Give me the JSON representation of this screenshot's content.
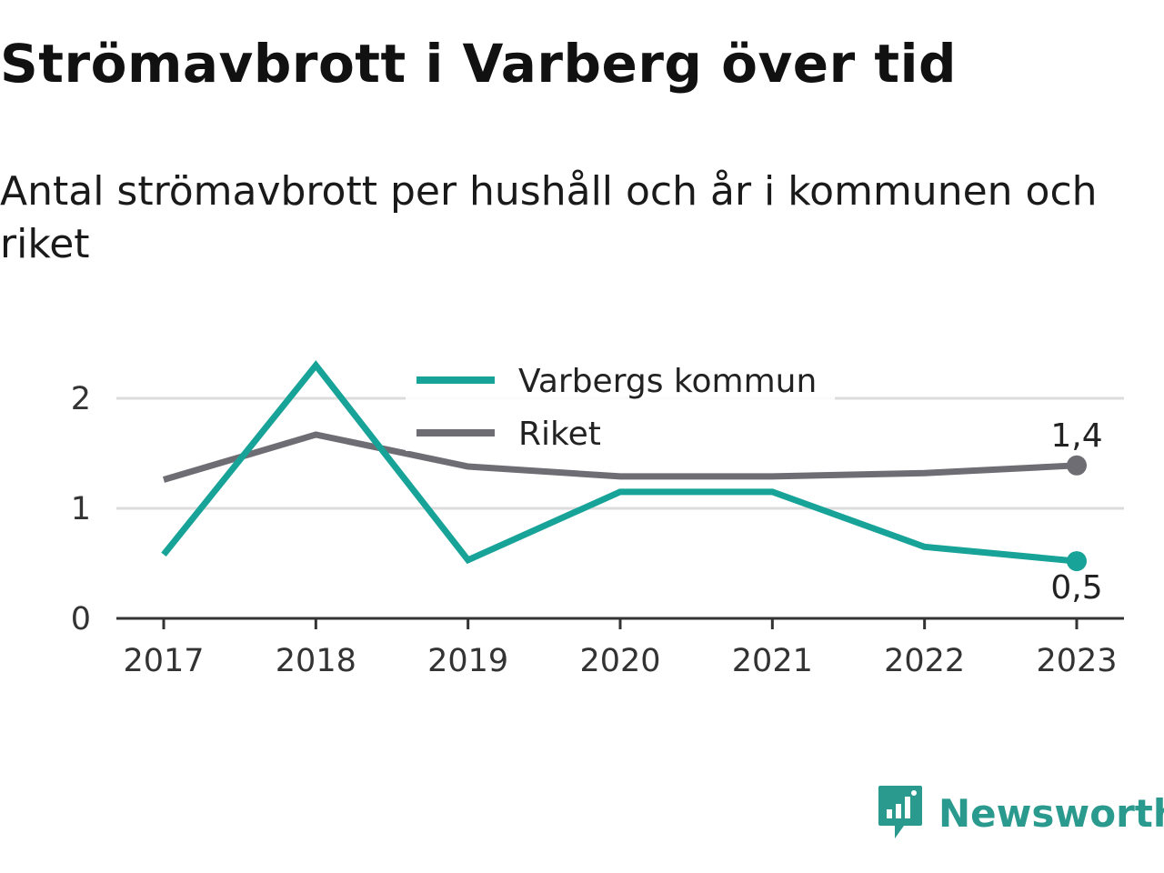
{
  "title": "Strömavbrott i Varberg över tid",
  "subtitle": "Antal strömavbrott per hushåll och år i kommunen och riket",
  "brand": {
    "name": "Newsworthy",
    "icon": "bar-chart-speech-bubble-icon",
    "color": "#2a9a8e"
  },
  "chart_data": {
    "type": "line",
    "title": "Strömavbrott i Varberg över tid",
    "subtitle": "Antal strömavbrott per hushåll och år i kommunen och riket",
    "x": [
      "2017",
      "2018",
      "2019",
      "2020",
      "2021",
      "2022",
      "2023"
    ],
    "ylim": [
      0,
      2.4
    ],
    "yticks": [
      0,
      1,
      2
    ],
    "ytick_labels": [
      "0",
      "1",
      "2"
    ],
    "grid": true,
    "legend": "top-center",
    "series": [
      {
        "name": "Varbergs kommun",
        "color": "#17a398",
        "values": [
          0.58,
          2.3,
          0.53,
          1.15,
          1.15,
          0.65,
          0.52
        ],
        "end_label": "0,5"
      },
      {
        "name": "Riket",
        "color": "#6e6d74",
        "values": [
          1.26,
          1.67,
          1.38,
          1.29,
          1.29,
          1.32,
          1.39
        ],
        "end_label": "1,4"
      }
    ]
  }
}
